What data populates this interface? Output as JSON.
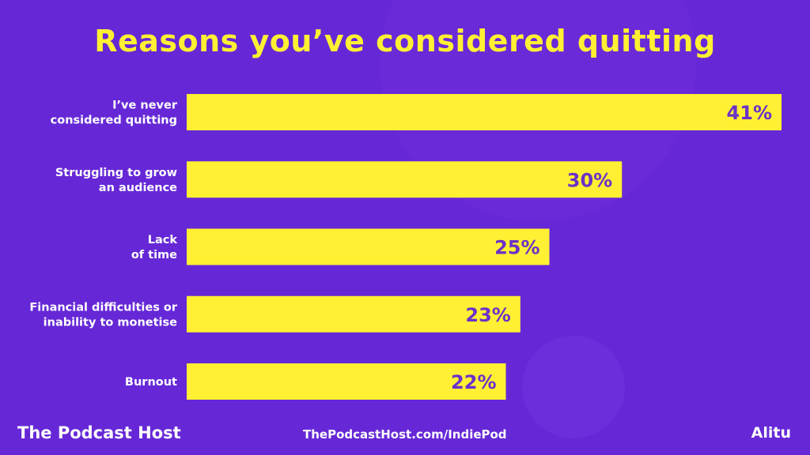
{
  "footer": {
    "brand": "The Podcast Host",
    "url": "ThePodcastHost.com/IndiePod",
    "partner": "Alitu"
  },
  "colors": {
    "background": "#6628d6",
    "bar": "#fff033",
    "value_text": "#6a32c8",
    "title": "#fff033"
  },
  "chart_data": {
    "type": "bar",
    "orientation": "horizontal",
    "title": "Reasons you’ve considered quitting",
    "categories": [
      [
        "I’ve never",
        "considered quitting"
      ],
      [
        "Struggling to grow",
        "an audience"
      ],
      [
        "Lack",
        "of time"
      ],
      [
        "Financial difficulties or",
        "inability to monetise"
      ],
      [
        "Burnout"
      ]
    ],
    "values": [
      41,
      30,
      25,
      23,
      22
    ],
    "data_labels": [
      "41%",
      "30%",
      "25%",
      "23%",
      "22%"
    ],
    "unit": "%",
    "grid": false,
    "xlabel": "",
    "ylabel": ""
  }
}
